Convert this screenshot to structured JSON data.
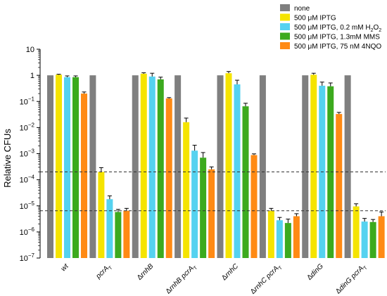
{
  "chart_data": {
    "type": "bar",
    "ylabel": "Relative CFUs",
    "yscale": "log",
    "ylim": [
      1e-07,
      10
    ],
    "yticks": [
      {
        "value": 10,
        "base": "10",
        "exp": ""
      },
      {
        "value": 1,
        "base": "1",
        "exp": ""
      },
      {
        "value": 0.1,
        "base": "10",
        "exp": "−1"
      },
      {
        "value": 0.01,
        "base": "10",
        "exp": "−2"
      },
      {
        "value": 0.001,
        "base": "10",
        "exp": "−3"
      },
      {
        "value": 0.0001,
        "base": "10",
        "exp": "−4"
      },
      {
        "value": 1e-05,
        "base": "10",
        "exp": "−5"
      },
      {
        "value": 1e-06,
        "base": "10",
        "exp": "−6"
      },
      {
        "value": 1e-07,
        "base": "10",
        "exp": "−7"
      }
    ],
    "categories": [
      {
        "prefix": "",
        "name": "wt",
        "sub": ""
      },
      {
        "prefix": "",
        "name": "pcrA",
        "sub": "T"
      },
      {
        "prefix": "Δ",
        "name": "rnhB",
        "sub": ""
      },
      {
        "prefix": "Δ",
        "name": "rnhB pcrA",
        "sub": "T"
      },
      {
        "prefix": "Δ",
        "name": "rnhC",
        "sub": ""
      },
      {
        "prefix": "Δ",
        "name": "rnhC pcrA",
        "sub": "T"
      },
      {
        "prefix": "Δ",
        "name": "dinG",
        "sub": ""
      },
      {
        "prefix": "Δ",
        "name": "dinG pcrA",
        "sub": "T"
      }
    ],
    "series": [
      {
        "name": "none",
        "color": "#7f7f7f",
        "values": [
          1,
          1,
          1,
          1,
          1,
          1,
          1,
          1
        ],
        "errors": [
          0,
          0,
          0,
          0,
          0,
          0,
          0,
          0
        ]
      },
      {
        "name": "500 μM IPTG",
        "color": "#f5e400",
        "values": [
          1.05,
          0.0002,
          1.15,
          0.016,
          1.2,
          6.5e-06,
          1.05,
          9.5e-06
        ],
        "errors": [
          0.05,
          9e-05,
          0.1,
          0.007,
          0.2,
          1.5e-06,
          0.15,
          2.5e-06
        ]
      },
      {
        "name": "500 μM IPTG, 0.2 mM H2O2",
        "color": "#55d2f0",
        "values": [
          0.85,
          1.8e-05,
          0.9,
          0.0013,
          0.45,
          2.8e-06,
          0.4,
          2.5e-06
        ],
        "errors": [
          0.1,
          6e-06,
          0.3,
          0.0008,
          0.2,
          8e-07,
          0.15,
          8e-07
        ]
      },
      {
        "name": "500 μM IPTG, 1.3mM MMS",
        "color": "#3caa1e",
        "values": [
          0.85,
          5.8e-06,
          0.7,
          0.0007,
          0.065,
          2.2e-06,
          0.38,
          2.4e-06
        ],
        "errors": [
          0.1,
          1.5e-06,
          0.15,
          0.0004,
          0.02,
          9e-07,
          0.13,
          6e-07
        ]
      },
      {
        "name": "500 μM IPTG, 75 nM 4NQO",
        "color": "#ff8a14",
        "values": [
          0.2,
          6.5e-06,
          0.13,
          0.00025,
          0.00088,
          4e-06,
          0.033,
          4e-06
        ],
        "errors": [
          0.03,
          1.5e-06,
          0.01,
          6e-05,
          0.0001,
          1e-06,
          0.005,
          1.8e-06
        ]
      }
    ],
    "reference_lines": [
      0.0002,
      6.5e-06
    ],
    "legend": {
      "position": "top-right"
    }
  }
}
